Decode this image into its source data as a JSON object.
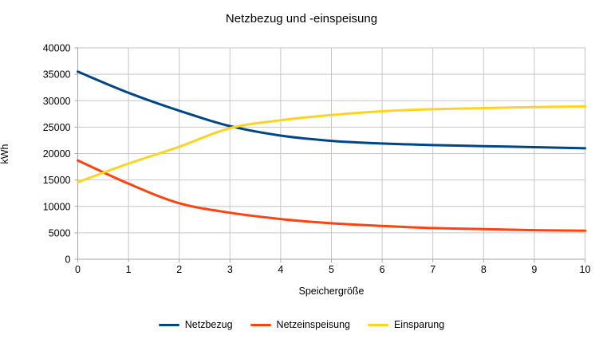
{
  "chart_data": {
    "type": "line",
    "title": "Netzbezug und -einspeisung",
    "xlabel": "Speichergröße",
    "ylabel": "kWh",
    "x": [
      0,
      1,
      2,
      3,
      4,
      5,
      6,
      7,
      8,
      9,
      10
    ],
    "series": [
      {
        "name": "Netzbezug",
        "color": "#004586",
        "values": [
          35500,
          31500,
          28100,
          25200,
          23400,
          22400,
          21900,
          21600,
          21400,
          21200,
          21000
        ]
      },
      {
        "name": "Netzeinspeisung",
        "color": "#FF420E",
        "values": [
          18700,
          14300,
          10600,
          8800,
          7600,
          6800,
          6300,
          5900,
          5700,
          5500,
          5400
        ]
      },
      {
        "name": "Einsparung",
        "color": "#FFD320",
        "values": [
          14600,
          18100,
          21300,
          24800,
          26300,
          27300,
          28000,
          28400,
          28600,
          28800,
          28900
        ]
      }
    ],
    "xlim": [
      0,
      10
    ],
    "ylim": [
      0,
      40000
    ],
    "xticks": [
      "0",
      "1",
      "2",
      "3",
      "4",
      "5",
      "6",
      "7",
      "8",
      "9",
      "10"
    ],
    "yticks": [
      "0",
      "5000",
      "10000",
      "15000",
      "20000",
      "25000",
      "30000",
      "35000",
      "40000"
    ],
    "grid": true,
    "legend_position": "bottom",
    "colors": {
      "background": "#ffffff",
      "grid": "#c6c6c6",
      "axis": "#a6a6a6",
      "text": "#000000"
    }
  }
}
